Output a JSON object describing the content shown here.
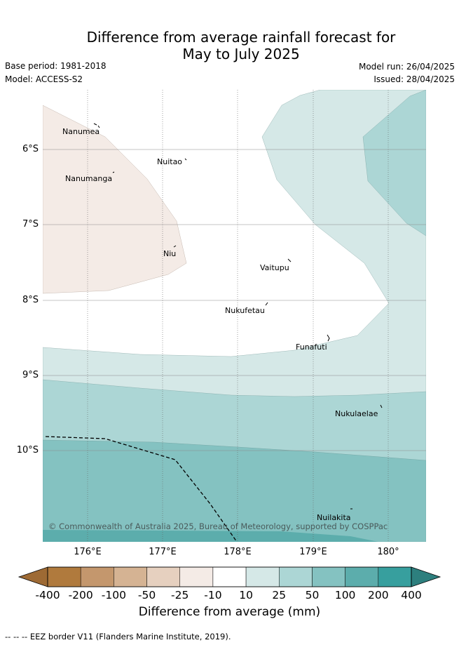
{
  "title_line1": "Difference from average rainfall forecast for",
  "title_line2": "May to July 2025",
  "base_period": "Base period: 1981-2018",
  "model": "Model: ACCESS-S2",
  "model_run": "Model run: 26/04/2025",
  "issued": "Issued: 28/04/2025",
  "lat_labels": [
    "6°S",
    "7°S",
    "8°S",
    "9°S",
    "10°S"
  ],
  "lon_labels": [
    "176°E",
    "177°E",
    "178°E",
    "179°E",
    "180°"
  ],
  "places": [
    "Nanumea",
    "Nuitao",
    "Nanumanga",
    "Niu",
    "Vaitupu",
    "Nukufetau",
    "Funafuti",
    "Nukulaelae",
    "Nuilakita"
  ],
  "credit": "© Commonwealth of Australia 2025, Bureau of Meteorology, supported by COSPPac",
  "colorbar": {
    "ticks": [
      "-400",
      "-200",
      "-100",
      "-50",
      "-25",
      "-10",
      "10",
      "25",
      "50",
      "100",
      "200",
      "400"
    ],
    "colors": [
      "#b07a3d",
      "#c4976d",
      "#d5b393",
      "#e6d0bf",
      "#f4ebe6",
      "#ffffff",
      "#d5e8e7",
      "#acd6d5",
      "#84c2c1",
      "#5cadac",
      "#379f9e"
    ],
    "under_color": "#9e6a34",
    "over_color": "#2d7f7e",
    "label": "Difference from average (mm)"
  },
  "footer": "-- --  -- EEZ border V11 (Flanders Marine Institute, 2019)."
}
